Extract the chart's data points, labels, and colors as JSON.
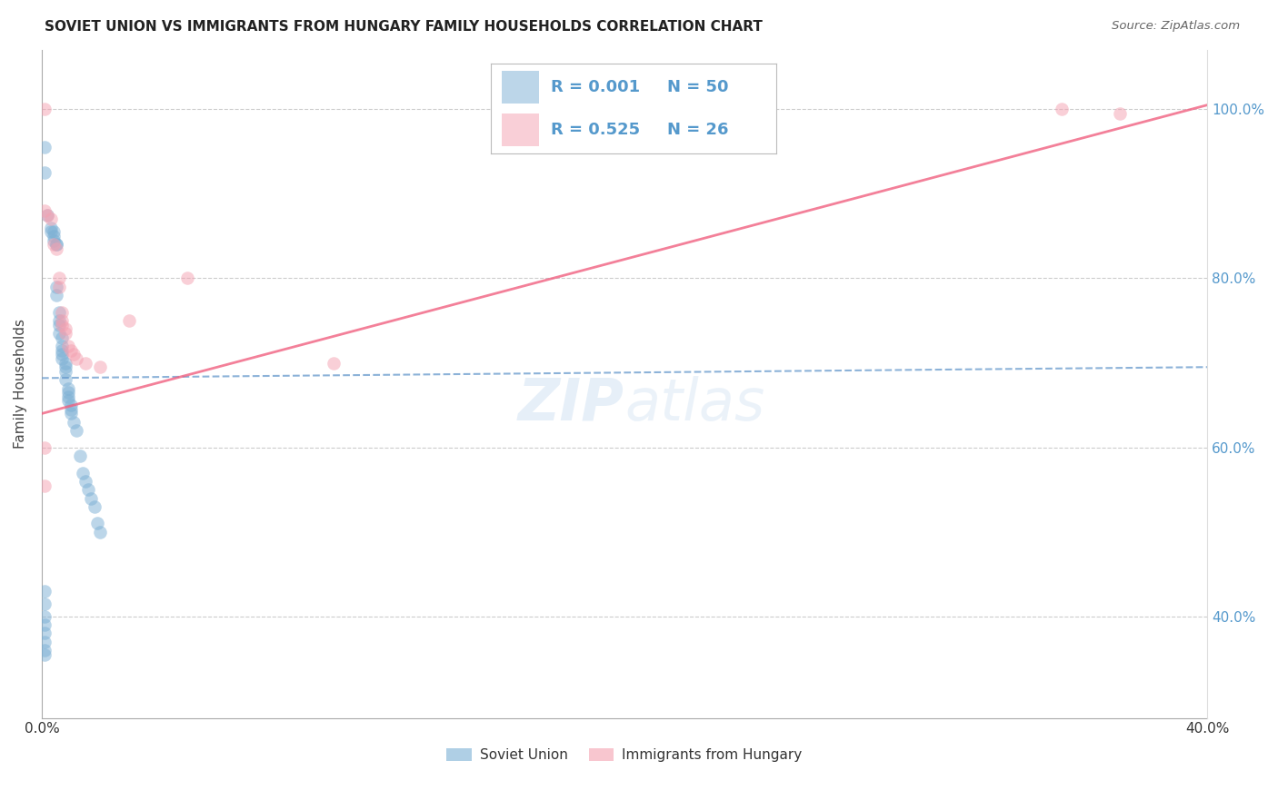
{
  "title": "SOVIET UNION VS IMMIGRANTS FROM HUNGARY FAMILY HOUSEHOLDS CORRELATION CHART",
  "source": "Source: ZipAtlas.com",
  "ylabel": "Family Households",
  "xlim": [
    0.0,
    0.4
  ],
  "ylim": [
    0.28,
    1.07
  ],
  "legend1_r": "0.001",
  "legend1_n": "50",
  "legend2_r": "0.525",
  "legend2_n": "26",
  "color_blue": "#7BAFD4",
  "color_pink": "#F4A0B0",
  "line_blue": "#6699CC",
  "line_pink": "#F06080",
  "watermark_zip": "ZIP",
  "watermark_atlas": "atlas",
  "soviet_x": [
    0.001,
    0.001,
    0.002,
    0.003,
    0.003,
    0.004,
    0.004,
    0.004,
    0.005,
    0.005,
    0.005,
    0.005,
    0.006,
    0.006,
    0.006,
    0.006,
    0.007,
    0.007,
    0.007,
    0.007,
    0.007,
    0.008,
    0.008,
    0.008,
    0.008,
    0.009,
    0.009,
    0.009,
    0.009,
    0.01,
    0.01,
    0.01,
    0.011,
    0.012,
    0.013,
    0.014,
    0.015,
    0.016,
    0.017,
    0.018,
    0.019,
    0.02,
    0.001,
    0.001,
    0.001,
    0.001,
    0.001,
    0.001,
    0.001,
    0.001
  ],
  "soviet_y": [
    0.955,
    0.925,
    0.875,
    0.86,
    0.855,
    0.855,
    0.85,
    0.845,
    0.84,
    0.84,
    0.79,
    0.78,
    0.76,
    0.75,
    0.745,
    0.735,
    0.73,
    0.72,
    0.715,
    0.71,
    0.705,
    0.7,
    0.695,
    0.69,
    0.68,
    0.67,
    0.665,
    0.66,
    0.655,
    0.65,
    0.645,
    0.64,
    0.63,
    0.62,
    0.59,
    0.57,
    0.56,
    0.55,
    0.54,
    0.53,
    0.51,
    0.5,
    0.43,
    0.415,
    0.4,
    0.39,
    0.38,
    0.37,
    0.36,
    0.355
  ],
  "hungary_x": [
    0.001,
    0.001,
    0.002,
    0.003,
    0.004,
    0.005,
    0.006,
    0.006,
    0.007,
    0.007,
    0.007,
    0.008,
    0.008,
    0.009,
    0.01,
    0.011,
    0.012,
    0.015,
    0.02,
    0.03,
    0.05,
    0.1,
    0.35,
    0.37,
    0.001,
    0.001
  ],
  "hungary_y": [
    1.0,
    0.88,
    0.875,
    0.87,
    0.84,
    0.835,
    0.8,
    0.79,
    0.76,
    0.75,
    0.745,
    0.74,
    0.735,
    0.72,
    0.715,
    0.71,
    0.705,
    0.7,
    0.695,
    0.75,
    0.8,
    0.7,
    1.0,
    0.995,
    0.6,
    0.555
  ],
  "blue_trend_x": [
    0.0,
    0.4
  ],
  "blue_trend_y": [
    0.682,
    0.695
  ],
  "pink_trend_x": [
    0.0,
    0.4
  ],
  "pink_trend_y": [
    0.64,
    1.005
  ],
  "x_ticks": [
    0.0,
    0.08,
    0.16,
    0.24,
    0.32,
    0.4
  ],
  "x_labels": [
    "0.0%",
    "",
    "",
    "",
    "",
    "40.0%"
  ],
  "y_ticks": [
    0.4,
    0.6,
    0.8,
    1.0
  ],
  "y_labels_right": [
    "40.0%",
    "60.0%",
    "80.0%",
    "100.0%"
  ],
  "grid_color": "#CCCCCC",
  "right_axis_color": "#5599CC"
}
